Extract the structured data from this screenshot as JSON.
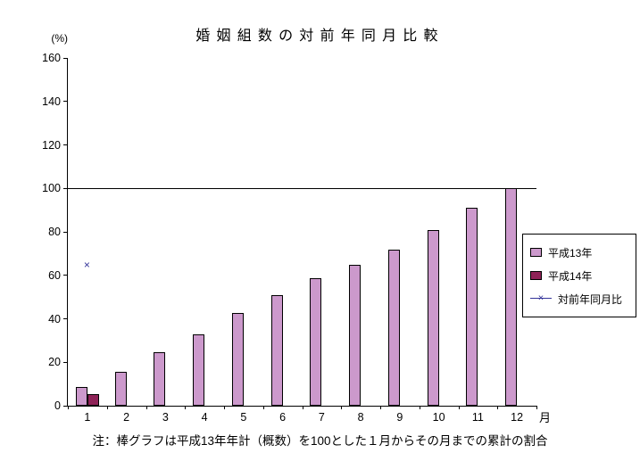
{
  "chart_data": {
    "type": "bar",
    "title": "婚姻組数の対前年同月比較",
    "y_unit": "(%)",
    "x_unit": "月",
    "categories": [
      "1",
      "2",
      "3",
      "4",
      "5",
      "6",
      "7",
      "8",
      "9",
      "10",
      "11",
      "12"
    ],
    "ylim": [
      0,
      160
    ],
    "ytick_step": 20,
    "reference_line": 100,
    "grid": "off",
    "legend_position": "right",
    "series": [
      {
        "name": "平成13年",
        "type": "bar",
        "color": "#cc99cc",
        "values": [
          8.5,
          15.5,
          24.5,
          33,
          42.5,
          51,
          58.5,
          65,
          72,
          81,
          91,
          100
        ]
      },
      {
        "name": "平成14年",
        "type": "bar",
        "color": "#8e2257",
        "values": [
          5.5,
          null,
          null,
          null,
          null,
          null,
          null,
          null,
          null,
          null,
          null,
          null
        ]
      },
      {
        "name": "対前年同月比",
        "type": "line",
        "color": "#333399",
        "marker": "x",
        "values": [
          65,
          null,
          null,
          null,
          null,
          null,
          null,
          null,
          null,
          null,
          null,
          null
        ]
      }
    ],
    "note": "注：棒グラフは平成13年年計（概数）を100とした１月からその月までの累計の割合"
  }
}
